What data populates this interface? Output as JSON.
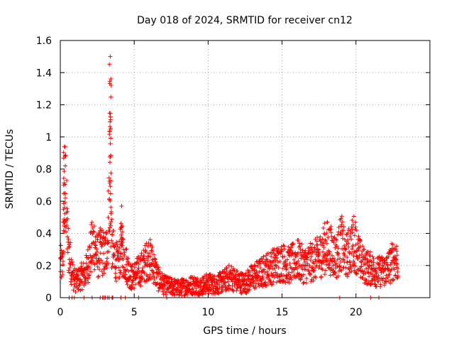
{
  "chart_data": {
    "type": "scatter",
    "title": "Day 018 of 2024, SRMTID for receiver cn12",
    "xlabel": "GPS time / hours",
    "ylabel": "SRMTID / TECUs",
    "xlim": [
      0,
      25
    ],
    "ylim": [
      0,
      1.6
    ],
    "x_ticks": [
      0,
      5,
      10,
      15,
      20
    ],
    "y_ticks": [
      0,
      0.2,
      0.4,
      0.6,
      0.8,
      1,
      1.2,
      1.4,
      1.6
    ],
    "x_tick_labels": [
      "0",
      "5",
      "10",
      "15",
      "20"
    ],
    "y_tick_labels": [
      "0",
      "0.2",
      "0.4",
      "0.6",
      "0.8",
      "1",
      "1.2",
      "1.4",
      "1.6"
    ],
    "grid": true,
    "marker": "+",
    "color": "#ff0000",
    "series_envelope": {
      "name": "SRMTID",
      "x": [
        0.0,
        0.15,
        0.25,
        0.35,
        0.45,
        0.55,
        0.7,
        0.9,
        1.1,
        1.4,
        1.7,
        1.9,
        2.1,
        2.3,
        2.5,
        2.8,
        3.0,
        3.2,
        3.35,
        3.5,
        3.7,
        3.9,
        4.1,
        4.3,
        4.5,
        4.8,
        5.1,
        5.5,
        6.0,
        6.3,
        6.6,
        7.0,
        7.5,
        8.0,
        8.5,
        9.0,
        9.5,
        10.0,
        10.5,
        11.0,
        11.5,
        12.0,
        12.5,
        13.0,
        13.5,
        14.0,
        14.5,
        15.0,
        15.5,
        16.0,
        16.5,
        17.0,
        17.5,
        17.8,
        18.1,
        18.4,
        18.7,
        19.0,
        19.3,
        19.6,
        19.9,
        20.2,
        20.5,
        21.0,
        21.5,
        22.0,
        22.3,
        22.6,
        22.85
      ],
      "y": [
        0.21,
        0.2,
        0.5,
        0.7,
        0.45,
        0.3,
        0.22,
        0.12,
        0.1,
        0.13,
        0.15,
        0.22,
        0.3,
        0.35,
        0.25,
        0.3,
        0.25,
        0.35,
        0.7,
        0.3,
        0.25,
        0.2,
        0.3,
        0.25,
        0.2,
        0.12,
        0.15,
        0.18,
        0.25,
        0.2,
        0.12,
        0.08,
        0.07,
        0.06,
        0.07,
        0.08,
        0.07,
        0.09,
        0.08,
        0.1,
        0.13,
        0.1,
        0.09,
        0.13,
        0.15,
        0.18,
        0.2,
        0.22,
        0.2,
        0.24,
        0.2,
        0.22,
        0.25,
        0.3,
        0.32,
        0.28,
        0.25,
        0.35,
        0.25,
        0.3,
        0.35,
        0.25,
        0.2,
        0.18,
        0.16,
        0.17,
        0.2,
        0.25,
        0.22
      ]
    },
    "spikes": [
      {
        "x": 0.28,
        "ymax": 0.94
      },
      {
        "x": 3.38,
        "ymax": 1.5
      },
      {
        "x": 4.15,
        "ymax": 0.57
      }
    ],
    "zero_points_x": [
      0.6,
      0.8,
      0.95,
      1.6,
      2.15,
      2.7,
      2.85,
      2.95,
      3.05,
      3.2,
      3.3,
      3.5,
      3.55,
      4.1,
      4.4,
      5.3,
      7.2,
      18.9,
      21.0,
      21.55
    ]
  }
}
